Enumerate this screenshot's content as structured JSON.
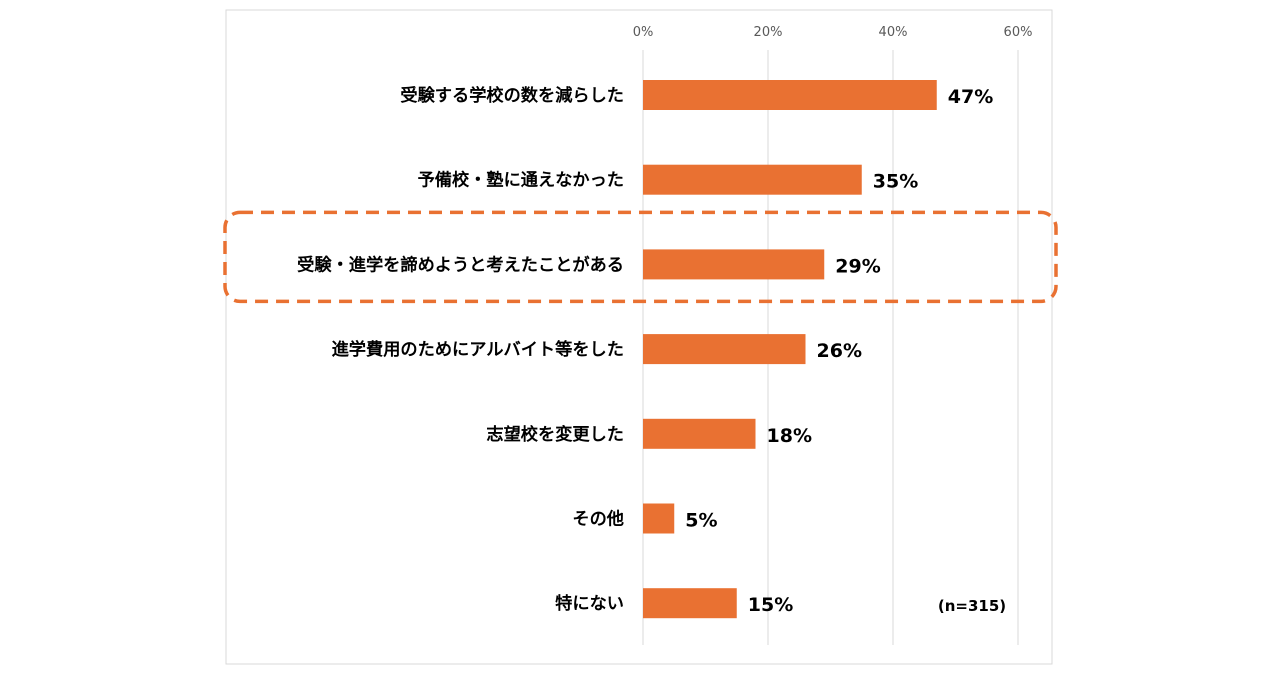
{
  "chart_data": {
    "type": "bar",
    "orientation": "horizontal",
    "categories": [
      "受験する学校の数を減らした",
      "予備校・塾に通えなかった",
      "受験・進学を諦めようと考えたことがある",
      "進学費用のためにアルバイト等をした",
      "志望校を変更した",
      "その他",
      "特にない"
    ],
    "values": [
      47,
      35,
      29,
      26,
      18,
      5,
      15
    ],
    "value_labels": [
      "47%",
      "35%",
      "29%",
      "26%",
      "18%",
      "5%",
      "15%"
    ],
    "xlim": [
      0,
      60
    ],
    "x_ticks": [
      0,
      20,
      40,
      60
    ],
    "x_tick_labels": [
      "0%",
      "20%",
      "40%",
      "60%"
    ],
    "x_axis_position": "top",
    "grid": true,
    "note": "(n=315)",
    "highlight": {
      "category_index": 2,
      "style": "dashed-rounded-box"
    },
    "colors": {
      "bar": "#E97132",
      "highlight": "#E97132",
      "grid": "#D9D9D9",
      "frame": "#D9D9D9",
      "text": "#000000",
      "tick_text": "#595959"
    }
  }
}
